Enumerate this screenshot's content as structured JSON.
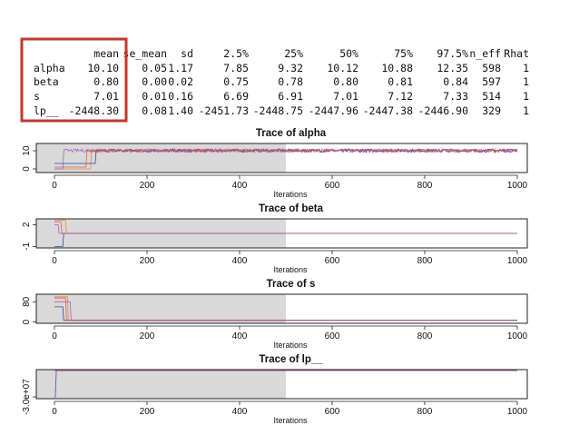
{
  "summary_table": {
    "headers": [
      "",
      "mean",
      "se_mean",
      "sd",
      "2.5%",
      "25%",
      "50%",
      "75%",
      "97.5%",
      "n_eff",
      "Rhat"
    ],
    "rows": [
      [
        "alpha",
        "10.10",
        "0.05",
        "1.17",
        "7.85",
        "9.32",
        "10.12",
        "10.88",
        "12.35",
        "598",
        "1"
      ],
      [
        "beta",
        "0.80",
        "0.00",
        "0.02",
        "0.75",
        "0.78",
        "0.80",
        "0.81",
        "0.84",
        "597",
        "1"
      ],
      [
        "s",
        "7.01",
        "0.01",
        "0.16",
        "6.69",
        "6.91",
        "7.01",
        "7.12",
        "7.33",
        "514",
        "1"
      ],
      [
        "lp__",
        "-2448.30",
        "0.08",
        "1.40",
        "-2451.73",
        "-2448.75",
        "-2447.96",
        "-2447.38",
        "-2446.90",
        "329",
        "1"
      ]
    ],
    "highlight_color": "#c0392b"
  },
  "chart_data": [
    {
      "type": "line",
      "title": "Trace of  alpha",
      "xlabel": "Iterations",
      "xlim": [
        0,
        1000
      ],
      "x_ticks": [
        0,
        200,
        400,
        600,
        800,
        1000
      ],
      "y_ticks": [
        "0",
        "10"
      ],
      "ylim": [
        -2,
        14
      ],
      "warmup_end": 500,
      "steady_value": 10.1,
      "series": [
        {
          "color": "#e67e22",
          "start": 0,
          "jump_at": 80
        },
        {
          "color": "#1f3a93",
          "start": 3,
          "jump_at": 90
        },
        {
          "color": "#e74c3c",
          "start": 1,
          "jump_at": 70
        },
        {
          "color": "#9b59b6",
          "start": 0,
          "jump_at": 20
        }
      ]
    },
    {
      "type": "line",
      "title": "Trace of  beta",
      "xlabel": "Iterations",
      "xlim": [
        0,
        1000
      ],
      "x_ticks": [
        0,
        200,
        400,
        600,
        800,
        1000
      ],
      "y_ticks": [
        "-1",
        "2"
      ],
      "ylim": [
        -1.2,
        2.8
      ],
      "warmup_end": 500,
      "steady_value": 0.8,
      "series": [
        {
          "color": "#e67e22",
          "start": 2.6,
          "jump_at": 25
        },
        {
          "color": "#1f3a93",
          "start": -1.0,
          "jump_at": 20
        },
        {
          "color": "#e74c3c",
          "start": 2.4,
          "jump_at": 15
        },
        {
          "color": "#9b59b6",
          "start": 2.0,
          "jump_at": 10
        }
      ]
    },
    {
      "type": "line",
      "title": "Trace of  s",
      "xlabel": "Iterations",
      "xlim": [
        0,
        1000
      ],
      "x_ticks": [
        0,
        200,
        400,
        600,
        800,
        1000
      ],
      "y_ticks": [
        "0",
        "80"
      ],
      "ylim": [
        -5,
        110
      ],
      "warmup_end": 500,
      "steady_value": 7.01,
      "series": [
        {
          "color": "#e67e22",
          "start": 100,
          "jump_at": 30
        },
        {
          "color": "#1f3a93",
          "start": 60,
          "jump_at": 20
        },
        {
          "color": "#e74c3c",
          "start": 95,
          "jump_at": 25
        },
        {
          "color": "#9b59b6",
          "start": 80,
          "jump_at": 35
        }
      ]
    },
    {
      "type": "line",
      "title": "Trace of  lp__",
      "xlabel": "Iterations",
      "xlim": [
        0,
        1000
      ],
      "x_ticks": [
        0,
        200,
        400,
        600,
        800,
        1000
      ],
      "y_ticks": [
        "-3.0e+07"
      ],
      "ylim": [
        -32000000,
        1000000
      ],
      "warmup_end": 500,
      "steady_value": -2448.3,
      "series": [
        {
          "color": "#e67e22",
          "start": -2448.3,
          "jump_at": 3
        },
        {
          "color": "#1f3a93",
          "start": -30000000,
          "jump_at": 3
        },
        {
          "color": "#e74c3c",
          "start": -2448.3,
          "jump_at": 3
        },
        {
          "color": "#9b59b6",
          "start": -30000000,
          "jump_at": 4
        }
      ]
    }
  ]
}
